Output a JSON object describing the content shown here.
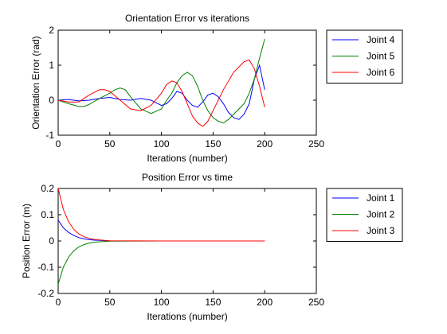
{
  "chart_data": [
    {
      "type": "line",
      "title": "Orientation Error vs iterations",
      "xlabel": "Iterations (number)",
      "ylabel": "Orientation Error (rad)",
      "xlim": [
        0,
        250
      ],
      "ylim": [
        -1,
        2
      ],
      "xticks": [
        0,
        50,
        100,
        150,
        200,
        250
      ],
      "yticks": [
        -1,
        0,
        1,
        2
      ],
      "grid": false,
      "legend": "outside-top-right",
      "series": [
        {
          "name": "Joint 4",
          "color": "#0000ff",
          "x": [
            0,
            10,
            20,
            30,
            40,
            50,
            60,
            70,
            80,
            90,
            100,
            105,
            110,
            115,
            120,
            125,
            130,
            135,
            140,
            145,
            150,
            155,
            160,
            165,
            170,
            175,
            180,
            185,
            190,
            195,
            200
          ],
          "y": [
            0.0,
            0.02,
            -0.02,
            0.0,
            0.05,
            0.08,
            0.02,
            0.0,
            0.05,
            0.0,
            -0.15,
            -0.1,
            0.05,
            0.25,
            0.2,
            0.0,
            -0.15,
            -0.2,
            -0.05,
            0.15,
            0.2,
            0.1,
            -0.1,
            -0.35,
            -0.5,
            -0.55,
            -0.4,
            -0.1,
            0.6,
            1.0,
            0.3
          ]
        },
        {
          "name": "Joint 5",
          "color": "#008000",
          "x": [
            0,
            10,
            20,
            25,
            30,
            40,
            50,
            55,
            60,
            65,
            70,
            80,
            90,
            100,
            105,
            110,
            115,
            120,
            125,
            130,
            135,
            140,
            145,
            150,
            155,
            160,
            165,
            170,
            175,
            180,
            185,
            190,
            195,
            200
          ],
          "y": [
            0.0,
            -0.1,
            -0.18,
            -0.18,
            -0.12,
            0.05,
            0.2,
            0.3,
            0.35,
            0.3,
            0.1,
            -0.25,
            -0.38,
            -0.25,
            0.0,
            0.2,
            0.5,
            0.7,
            0.8,
            0.7,
            0.4,
            0.0,
            -0.3,
            -0.5,
            -0.6,
            -0.65,
            -0.55,
            -0.4,
            -0.25,
            -0.1,
            0.2,
            0.6,
            1.2,
            1.75
          ]
        },
        {
          "name": "Joint 6",
          "color": "#ff0000",
          "x": [
            0,
            10,
            20,
            30,
            40,
            45,
            50,
            60,
            70,
            80,
            90,
            100,
            105,
            110,
            115,
            120,
            125,
            130,
            135,
            140,
            145,
            150,
            155,
            160,
            170,
            180,
            185,
            190,
            195,
            200
          ],
          "y": [
            0.0,
            -0.05,
            -0.05,
            0.15,
            0.3,
            0.3,
            0.25,
            0.0,
            -0.25,
            -0.3,
            -0.15,
            0.2,
            0.45,
            0.55,
            0.5,
            0.25,
            -0.1,
            -0.45,
            -0.65,
            -0.75,
            -0.6,
            -0.3,
            0.0,
            0.3,
            0.8,
            1.1,
            1.15,
            0.9,
            0.4,
            -0.2
          ]
        }
      ]
    },
    {
      "type": "line",
      "title": "Position Error vs time",
      "xlabel": "Iterations (number)",
      "ylabel": "Position Error (m)",
      "xlim": [
        0,
        250
      ],
      "ylim": [
        -0.2,
        0.2
      ],
      "xticks": [
        0,
        50,
        100,
        150,
        200,
        250
      ],
      "yticks": [
        -0.2,
        -0.1,
        0,
        0.1,
        0.2
      ],
      "grid": false,
      "legend": "outside-top-right",
      "series": [
        {
          "name": "Joint 1",
          "color": "#0000ff",
          "x": [
            0,
            5,
            10,
            15,
            20,
            25,
            30,
            35,
            40,
            45,
            50,
            100,
            150,
            200
          ],
          "y": [
            0.08,
            0.05,
            0.033,
            0.021,
            0.013,
            0.008,
            0.005,
            0.003,
            0.002,
            0.001,
            0.0,
            0.0,
            0.0,
            0.0
          ]
        },
        {
          "name": "Joint 2",
          "color": "#008000",
          "x": [
            0,
            5,
            10,
            15,
            20,
            25,
            30,
            35,
            40,
            45,
            50,
            100,
            150,
            200
          ],
          "y": [
            -0.165,
            -0.1,
            -0.062,
            -0.038,
            -0.023,
            -0.014,
            -0.008,
            -0.005,
            -0.003,
            -0.002,
            -0.001,
            0.0,
            0.0,
            0.0
          ]
        },
        {
          "name": "Joint 3",
          "color": "#ff0000",
          "x": [
            0,
            5,
            10,
            15,
            20,
            25,
            30,
            35,
            40,
            45,
            50,
            100,
            150,
            200
          ],
          "y": [
            0.2,
            0.12,
            0.074,
            0.045,
            0.027,
            0.016,
            0.01,
            0.006,
            0.004,
            0.002,
            0.001,
            0.0,
            0.0,
            0.0
          ]
        }
      ]
    }
  ]
}
